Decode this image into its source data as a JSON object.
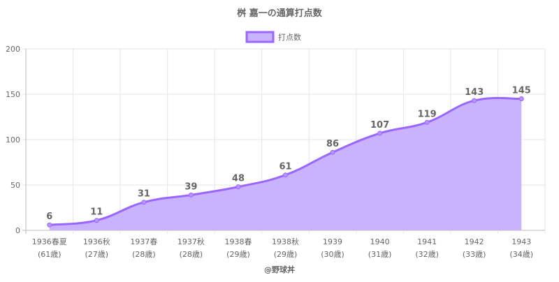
{
  "chart_data": {
    "type": "area",
    "title": "桝 嘉一の通算打点数",
    "legend": {
      "label": "打点数",
      "placement": "top"
    },
    "categories": [
      [
        "1936春夏",
        "(61歳)"
      ],
      [
        "1936秋",
        "(27歳)"
      ],
      [
        "1937春",
        "(28歳)"
      ],
      [
        "1937秋",
        "(28歳)"
      ],
      [
        "1938春",
        "(29歳)"
      ],
      [
        "1938秋",
        "(29歳)"
      ],
      [
        "1939",
        "(30歳)"
      ],
      [
        "1940",
        "(31歳)"
      ],
      [
        "1941",
        "(32歳)"
      ],
      [
        "1942",
        "(33歳)"
      ],
      [
        "1943",
        "(34歳)"
      ]
    ],
    "values": [
      6,
      11,
      31,
      39,
      48,
      61,
      86,
      107,
      119,
      143,
      145
    ],
    "ylim": [
      0,
      200
    ],
    "yticks": [
      0,
      50,
      100,
      150,
      200
    ],
    "grid": true,
    "colors": {
      "line": "#9966ff",
      "fill": "#c9b3ff",
      "text": "#666666",
      "grid": "#e5e5e5"
    }
  },
  "footer": "@野球丼"
}
